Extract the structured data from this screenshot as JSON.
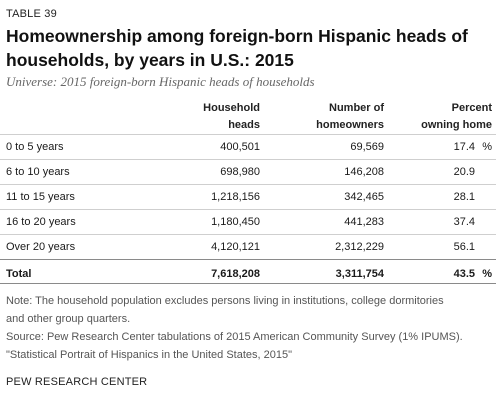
{
  "table_label": "TABLE 39",
  "title": "Homeownership among foreign-born Hispanic heads of households, by years in U.S.: 2015",
  "subtitle": "Universe: 2015 foreign-born Hispanic heads of households",
  "headers": {
    "col1": [
      "Household",
      "heads"
    ],
    "col2": [
      "Number of",
      "homeowners"
    ],
    "col3": [
      "Percent",
      "owning home"
    ]
  },
  "rows": [
    {
      "label": "0 to 5 years",
      "household_heads": "400,501",
      "homeowners": "69,569",
      "percent": "17.4",
      "pct_sign": "%"
    },
    {
      "label": "6 to 10 years",
      "household_heads": "698,980",
      "homeowners": "146,208",
      "percent": "20.9",
      "pct_sign": ""
    },
    {
      "label": "11 to 15 years",
      "household_heads": "1,218,156",
      "homeowners": "342,465",
      "percent": "28.1",
      "pct_sign": ""
    },
    {
      "label": "16 to 20 years",
      "household_heads": "1,180,450",
      "homeowners": "441,283",
      "percent": "37.4",
      "pct_sign": ""
    },
    {
      "label": "Over 20 years",
      "household_heads": "4,120,121",
      "homeowners": "2,312,229",
      "percent": "56.1",
      "pct_sign": ""
    }
  ],
  "total": {
    "label": "Total",
    "household_heads": "7,618,208",
    "homeowners": "3,311,754",
    "percent": "43.5",
    "pct_sign": "%"
  },
  "notes": {
    "line1": "Note: The household population excludes persons living in institutions, college dormitories",
    "line2": "and other group quarters.",
    "line3": "Source: Pew Research Center tabulations of 2015 American Community Survey (1% IPUMS).",
    "line4": "\"Statistical Portrait of Hispanics in the United States, 2015\""
  },
  "source_org": "PEW RESEARCH CENTER"
}
